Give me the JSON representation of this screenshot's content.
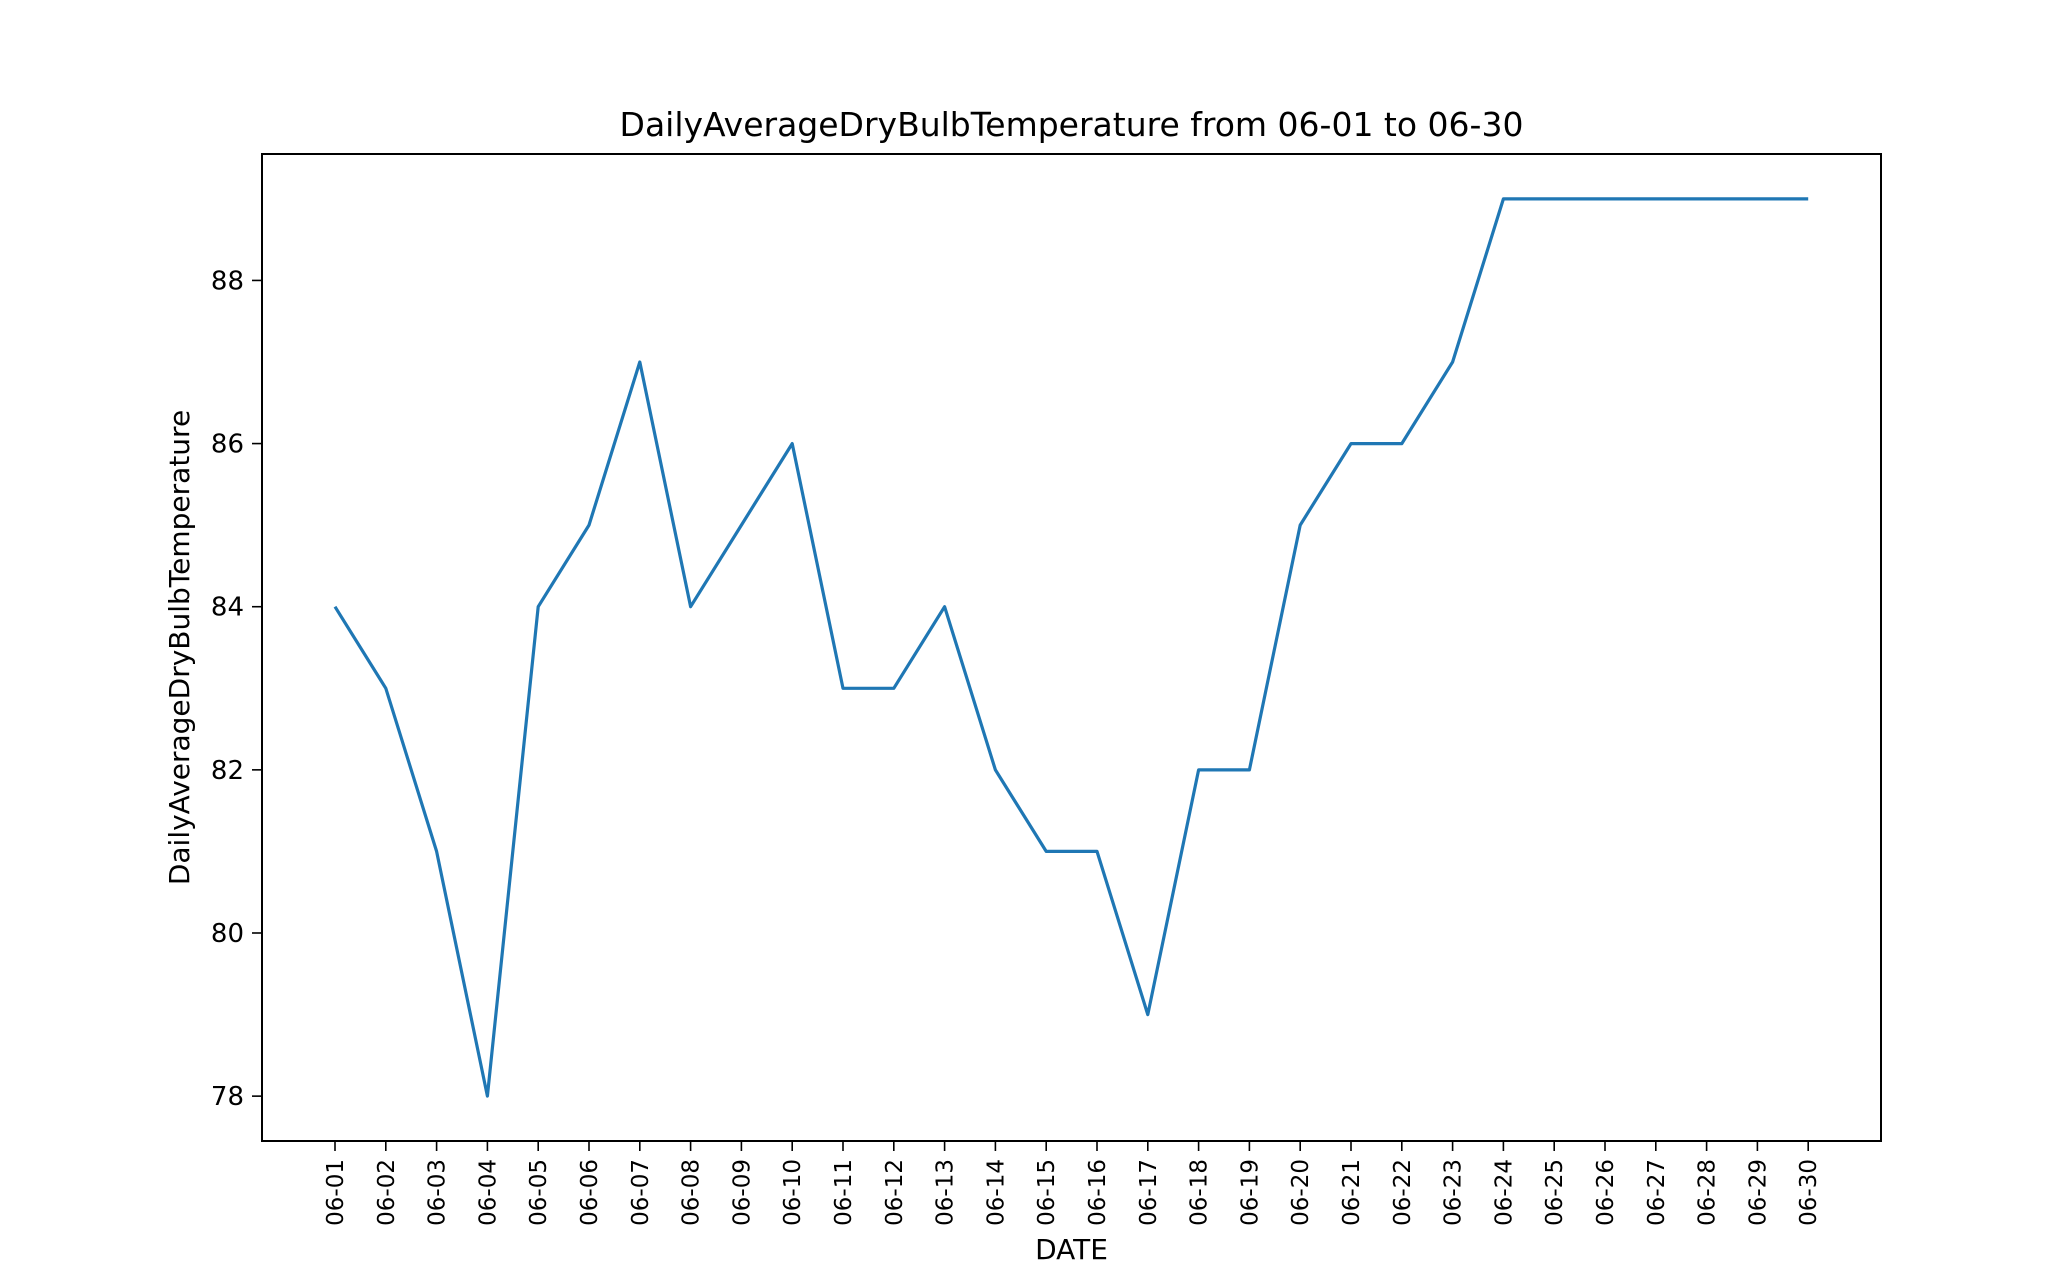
{
  "chart_data": {
    "type": "line",
    "title": "DailyAverageDryBulbTemperature from 06-01 to 06-30",
    "xlabel": "DATE",
    "ylabel": "DailyAverageDryBulbTemperature",
    "x": [
      "06-01",
      "06-02",
      "06-03",
      "06-04",
      "06-05",
      "06-06",
      "06-07",
      "06-08",
      "06-09",
      "06-10",
      "06-11",
      "06-12",
      "06-13",
      "06-14",
      "06-15",
      "06-16",
      "06-17",
      "06-18",
      "06-19",
      "06-20",
      "06-21",
      "06-22",
      "06-23",
      "06-24",
      "06-25",
      "06-26",
      "06-27",
      "06-28",
      "06-29",
      "06-30"
    ],
    "series": [
      {
        "values": [
          84,
          83,
          81,
          78,
          84,
          85,
          87,
          84,
          85,
          86,
          83,
          83,
          84,
          82,
          81,
          81,
          79,
          82,
          82,
          85,
          86,
          86,
          87,
          89,
          89,
          89,
          89,
          89,
          89,
          89
        ],
        "color": "#1f77b4"
      }
    ],
    "yticks": [
      "78",
      "80",
      "82",
      "84",
      "86",
      "88"
    ],
    "ylim": [
      77.45,
      89.55
    ],
    "grid": false,
    "legend": "none"
  }
}
